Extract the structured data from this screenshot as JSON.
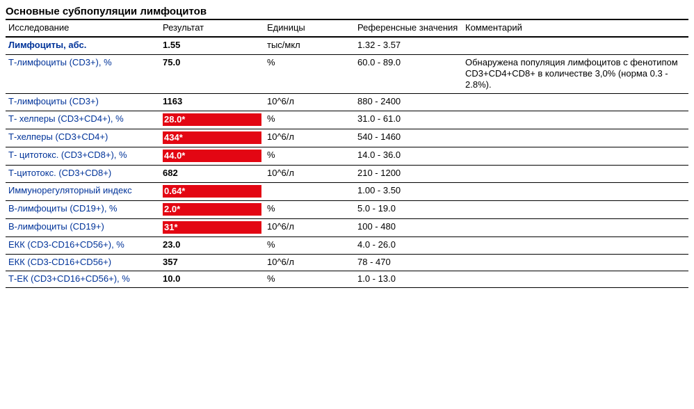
{
  "title": "Основные субпопуляции лимфоцитов",
  "headers": {
    "test": "Исследование",
    "result": "Результат",
    "units": "Единицы",
    "ref": "Референсные значения",
    "comment": "Комментарий"
  },
  "flag_bg": "#e30613",
  "flag_fg": "#ffffff",
  "test_link_color": "#003399",
  "rows": [
    {
      "test": "Лимфоциты, абс.",
      "test_bold": true,
      "result": "1.55",
      "flag": false,
      "units": "тыс/мкл",
      "ref": "1.32 - 3.57",
      "comment": ""
    },
    {
      "test": "Т-лимфоциты (CD3+), %",
      "test_bold": false,
      "result": "75.0",
      "flag": false,
      "units": "%",
      "ref": "60.0 - 89.0",
      "comment": "Обнаружена популяция лимфоцитов с фенотипом CD3+CD4+CD8+ в количестве 3,0% (норма 0.3 - 2.8%)."
    },
    {
      "test": "Т-лимфоциты (CD3+)",
      "test_bold": false,
      "result": "1163",
      "flag": false,
      "units": "10^6/л",
      "ref": "880 - 2400",
      "comment": ""
    },
    {
      "test": "Т- хелперы (CD3+CD4+), %",
      "test_bold": false,
      "result": "28.0*",
      "flag": true,
      "units": "%",
      "ref": "31.0 - 61.0",
      "comment": ""
    },
    {
      "test": "Т-хелперы (CD3+CD4+)",
      "test_bold": false,
      "result": "434*",
      "flag": true,
      "units": "10^6/л",
      "ref": "540 - 1460",
      "comment": ""
    },
    {
      "test": "Т- цитотокс. (CD3+CD8+), %",
      "test_bold": false,
      "result": "44.0*",
      "flag": true,
      "units": "%",
      "ref": "14.0 - 36.0",
      "comment": ""
    },
    {
      "test": "Т-цитотокс. (CD3+CD8+)",
      "test_bold": false,
      "result": "682",
      "flag": false,
      "units": "10^6/л",
      "ref": "210 - 1200",
      "comment": ""
    },
    {
      "test": "Иммунорегуляторный индекс",
      "test_bold": false,
      "result": "0.64*",
      "flag": true,
      "units": "",
      "ref": "1.00 - 3.50",
      "comment": ""
    },
    {
      "test": "В-лимфоциты (CD19+), %",
      "test_bold": false,
      "result": "2.0*",
      "flag": true,
      "units": "%",
      "ref": "5.0 - 19.0",
      "comment": ""
    },
    {
      "test": "В-лимфоциты (CD19+)",
      "test_bold": false,
      "result": "31*",
      "flag": true,
      "units": "10^6/л",
      "ref": "100 - 480",
      "comment": ""
    },
    {
      "test": "ЕКК (CD3-CD16+CD56+), %",
      "test_bold": false,
      "result": "23.0",
      "flag": false,
      "units": "%",
      "ref": "4.0 - 26.0",
      "comment": ""
    },
    {
      "test": "ЕКК (CD3-CD16+CD56+)",
      "test_bold": false,
      "result": "357",
      "flag": false,
      "units": "10^6/л",
      "ref": "78 - 470",
      "comment": ""
    },
    {
      "test": "Т-ЕК (CD3+CD16+CD56+), %",
      "test_bold": false,
      "result": "10.0",
      "flag": false,
      "units": "%",
      "ref": "1.0 - 13.0",
      "comment": ""
    }
  ]
}
